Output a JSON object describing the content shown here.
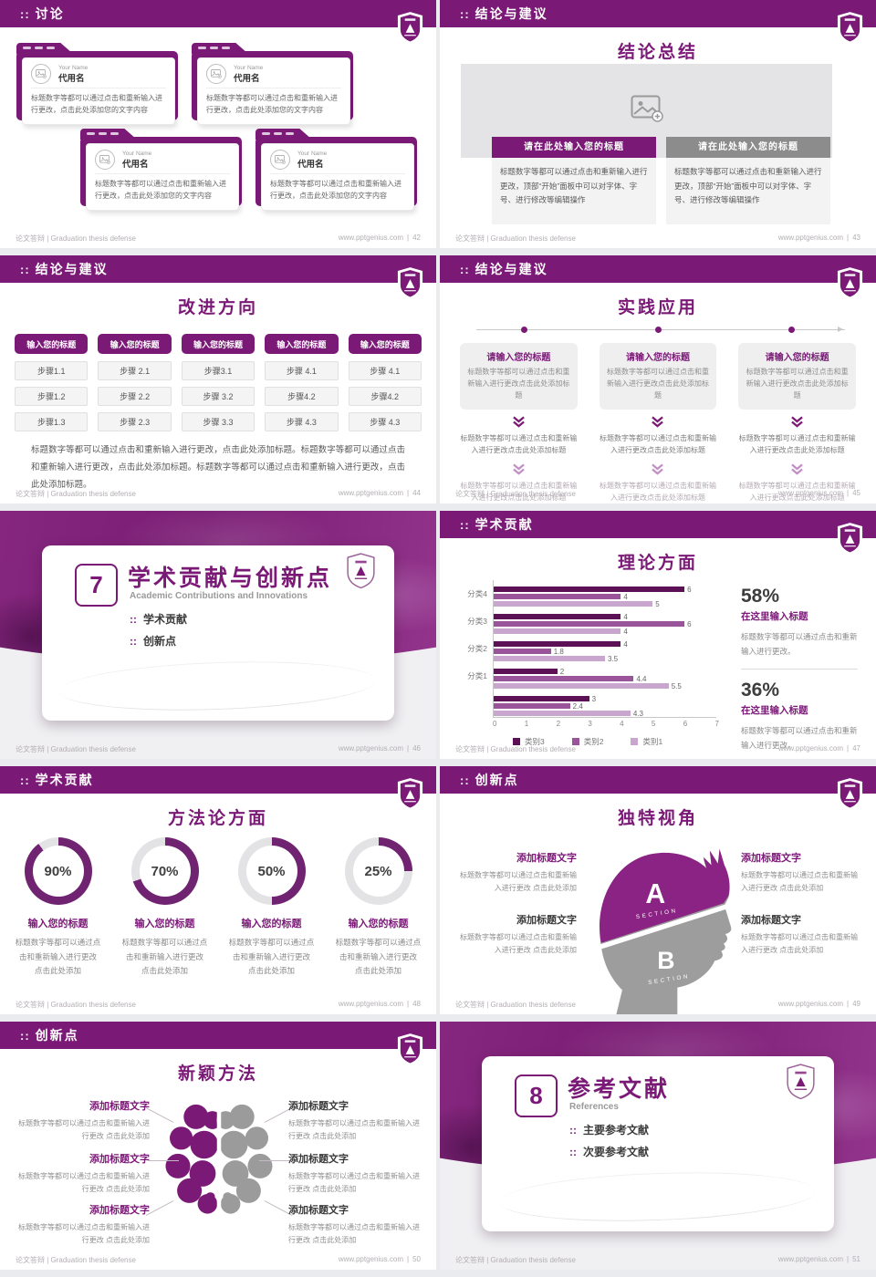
{
  "ui": {
    "marker": "::",
    "footer_left": "论文答辩 | Graduation thesis defense",
    "footer_site": "www.pptgenius.com",
    "footer_sep": "|",
    "accent": "#7b1977",
    "logo_name": "university-shield-logo"
  },
  "slides": [
    {
      "page": "42",
      "header": "讨论",
      "folders": [
        {
          "label": "Your Name",
          "name": "代用名",
          "body": "标题数字等都可以通过点击和重新输入进行更改，点击此处添加您的文字内容"
        },
        {
          "label": "Your Name",
          "name": "代用名",
          "body": "标题数字等都可以通过点击和重新输入进行更改，点击此处添加您的文字内容"
        },
        {
          "label": "Your Name",
          "name": "代用名",
          "body": "标题数字等都可以通过点击和重新输入进行更改，点击此处添加您的文字内容"
        },
        {
          "label": "Your Name",
          "name": "代用名",
          "body": "标题数字等都可以通过点击和重新输入进行更改，点击此处添加您的文字内容"
        }
      ]
    },
    {
      "page": "43",
      "header": "结论与建议",
      "title": "结论总结",
      "panels": [
        {
          "bar": "请在此处输入您的标题",
          "body": "标题数字等都可以通过点击和重新输入进行更改，顶部“开始”面板中可以对字体、字号、进行修改等编辑操作"
        },
        {
          "bar": "请在此处输入您的标题",
          "body": "标题数字等都可以通过点击和重新输入进行更改，顶部“开始”面板中可以对字体、字号、进行修改等编辑操作"
        }
      ]
    },
    {
      "page": "44",
      "header": "结论与建议",
      "title": "改进方向",
      "col_headers": [
        "输入您的标题",
        "输入您的标题",
        "输入您的标题",
        "输入您的标题",
        "输入您的标题"
      ],
      "steps": [
        "步骤1.1",
        "步骤1.2",
        "步骤1.3",
        "步骤 2.1",
        "步骤 2.2",
        "步骤 2.3",
        "步骤3.1",
        "步骤 3.2",
        "步骤 3.3",
        "步骤 4.1",
        "步骤4.2",
        "步骤 4.3",
        "步骤 4.1",
        "步骤4.2",
        "步骤 4.3"
      ],
      "note": "标题数字等都可以通过点击和重新输入进行更改，点击此处添加标题。标题数字等都可以通过点击和重新输入进行更改，点击此处添加标题。标题数字等都可以通过点击和重新输入进行更改，点击此处添加标题。"
    },
    {
      "page": "45",
      "header": "结论与建议",
      "title": "实践应用",
      "cols": [
        {
          "title": "请输入您的标题",
          "box": "标题数字等都可以通过点击和重新输入进行更改点击此处添加标题",
          "mid": "标题数字等都可以通过点击和重新输入进行更改点击此处添加标题",
          "low": "标题数字等都可以通过点击和重新输入进行更改点击此处添加标题"
        },
        {
          "title": "请输入您的标题",
          "box": "标题数字等都可以通过点击和重新输入进行更改点击此处添加标题",
          "mid": "标题数字等都可以通过点击和重新输入进行更改点击此处添加标题",
          "low": "标题数字等都可以通过点击和重新输入进行更改点击此处添加标题"
        },
        {
          "title": "请输入您的标题",
          "box": "标题数字等都可以通过点击和重新输入进行更改点击此处添加标题",
          "mid": "标题数字等都可以通过点击和重新输入进行更改点击此处添加标题",
          "low": "标题数字等都可以通过点击和重新输入进行更改点击此处添加标题"
        }
      ]
    },
    {
      "page": "46",
      "section": {
        "number": "7",
        "title": "学术贡献与创新点",
        "subtitle": "Academic Contributions and Innovations",
        "bullets": [
          "学术贡献",
          "创新点"
        ]
      }
    },
    {
      "page": "47",
      "header": "学术贡献",
      "title": "理论方面",
      "chart_data": {
        "type": "bar",
        "orientation": "horizontal",
        "title": "理论方面",
        "categories": [
          "分类4",
          "分类3",
          "分类2",
          "分类1",
          ""
        ],
        "series": [
          {
            "name": "类别3",
            "values": [
              6,
              4,
              4,
              2,
              3
            ]
          },
          {
            "name": "类别2",
            "values": [
              4,
              6,
              1.8,
              4.4,
              2.4
            ]
          },
          {
            "name": "类别1",
            "values": [
              5,
              4,
              3.5,
              5.5,
              4.3
            ]
          }
        ],
        "xlim": [
          0,
          7
        ],
        "xticks": [
          "0",
          "1",
          "2",
          "3",
          "4",
          "5",
          "6",
          "7"
        ],
        "legend": [
          {
            "name": "类别3",
            "series": "s3"
          },
          {
            "name": "类别2",
            "series": "s2"
          },
          {
            "name": "类别1",
            "series": "s1"
          }
        ],
        "colors": {
          "s3": "#5c1056",
          "s2": "#9a549a",
          "s1": "#c9a6cd"
        },
        "bars": [
          {
            "series": "s3",
            "value": 6,
            "gap": 1
          },
          {
            "series": "s2",
            "value": 4
          },
          {
            "series": "s1",
            "value": 5
          },
          {
            "series": "s3",
            "value": 4,
            "gap": 1
          },
          {
            "series": "s2",
            "value": 6
          },
          {
            "series": "s1",
            "value": 4
          },
          {
            "series": "s3",
            "value": 4,
            "gap": 1
          },
          {
            "series": "s2",
            "value": 1.8
          },
          {
            "series": "s1",
            "value": 3.5
          },
          {
            "series": "s3",
            "value": 2,
            "gap": 1
          },
          {
            "series": "s2",
            "value": 4.4
          },
          {
            "series": "s1",
            "value": 5.5
          },
          {
            "series": "s3",
            "value": 3,
            "gap": 1
          },
          {
            "series": "s2",
            "value": 2.4
          },
          {
            "series": "s1",
            "value": 4.3
          }
        ]
      },
      "stats": [
        {
          "pct": "58%",
          "title": "在这里输入标题",
          "body": "标题数字等都可以通过点击和重新输入进行更改。"
        },
        {
          "pct": "36%",
          "title": "在这里输入标题",
          "body": "标题数字等都可以通过点击和重新输入进行更改。"
        }
      ]
    },
    {
      "page": "48",
      "header": "学术贡献",
      "title": "方法论方面",
      "donuts": [
        {
          "value": 90,
          "label": "90%",
          "title": "输入您的标题",
          "body": "标题数字等都可以通过点击和重新输入进行更改 点击此处添加"
        },
        {
          "value": 70,
          "label": "70%",
          "title": "输入您的标题",
          "body": "标题数字等都可以通过点击和重新输入进行更改 点击此处添加"
        },
        {
          "value": 50,
          "label": "50%",
          "title": "输入您的标题",
          "body": "标题数字等都可以通过点击和重新输入进行更改 点击此处添加"
        },
        {
          "value": 25,
          "label": "25%",
          "title": "输入您的标题",
          "body": "标题数字等都可以通过点击和重新输入进行更改 点击此处添加"
        }
      ]
    },
    {
      "page": "49",
      "header": "创新点",
      "title": "独特视角",
      "head": {
        "a": "A",
        "a_sub": "SECTION",
        "b": "B",
        "b_sub": "SECTION"
      },
      "blocks": [
        {
          "title": "添加标题文字",
          "body": "标题数字等都可以通过点击和重新输入进行更改 点击此处添加",
          "tone": "purple"
        },
        {
          "title": "添加标题文字",
          "body": "标题数字等都可以通过点击和重新输入进行更改 点击此处添加",
          "tone": "dark"
        },
        {
          "title": "添加标题文字",
          "body": "标题数字等都可以通过点击和重新输入进行更改 点击此处添加",
          "tone": "purple"
        },
        {
          "title": "添加标题文字",
          "body": "标题数字等都可以通过点击和重新输入进行更改 点击此处添加",
          "tone": "dark"
        }
      ]
    },
    {
      "page": "50",
      "header": "创新点",
      "title": "新颖方法",
      "blocks": [
        {
          "title": "添加标题文字",
          "body": "标题数字等都可以通过点击和重新输入进行更改 点击此处添加",
          "tone": "purple"
        },
        {
          "title": "添加标题文字",
          "body": "标题数字等都可以通过点击和重新输入进行更改 点击此处添加",
          "tone": "purple"
        },
        {
          "title": "添加标题文字",
          "body": "标题数字等都可以通过点击和重新输入进行更改 点击此处添加",
          "tone": "purple"
        },
        {
          "title": "添加标题文字",
          "body": "标题数字等都可以通过点击和重新输入进行更改 点击此处添加",
          "tone": "dark"
        },
        {
          "title": "添加标题文字",
          "body": "标题数字等都可以通过点击和重新输入进行更改 点击此处添加",
          "tone": "dark"
        },
        {
          "title": "添加标题文字",
          "body": "标题数字等都可以通过点击和重新输入进行更改 点击此处添加",
          "tone": "dark"
        }
      ]
    },
    {
      "page": "51",
      "section": {
        "number": "8",
        "title": "参考文献",
        "subtitle": "References",
        "bullets": [
          "主要参考文献",
          "次要参考文献"
        ]
      }
    }
  ]
}
